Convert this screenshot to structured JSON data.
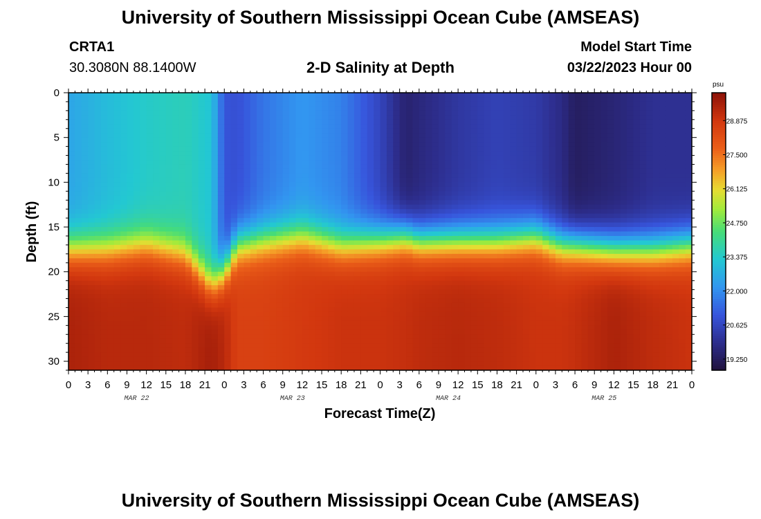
{
  "header": {
    "title": "University of Southern Mississippi Ocean Cube (AMSEAS)",
    "station": "CRTA1",
    "coordinates": "30.3080N  88.1400W",
    "subtitle": "2-D Salinity at Depth",
    "model_start_label": "Model Start Time",
    "model_start_value": "03/22/2023 Hour 00"
  },
  "footer": {
    "title": "University of Southern Mississippi Ocean Cube (AMSEAS)"
  },
  "chart_data": {
    "type": "heatmap",
    "title": "2-D Salinity at Depth",
    "xlabel": "Forecast Time(Z)",
    "ylabel": "Depth (ft)",
    "x_hours_range": [
      0,
      96
    ],
    "x_tick_step_hours": 3,
    "x_tick_labels": [
      "0",
      "3",
      "6",
      "9",
      "12",
      "15",
      "18",
      "21",
      "0",
      "3",
      "6",
      "9",
      "12",
      "15",
      "18",
      "21",
      "0",
      "3",
      "6",
      "9",
      "12",
      "15",
      "18",
      "21",
      "0",
      "3",
      "6",
      "9",
      "12",
      "15",
      "18",
      "21",
      "0"
    ],
    "date_labels": [
      {
        "label": "MAR 22",
        "hour": 10.5
      },
      {
        "label": "MAR 23",
        "hour": 34.5
      },
      {
        "label": "MAR 24",
        "hour": 58.5
      },
      {
        "label": "MAR 25",
        "hour": 82.5
      }
    ],
    "ylim": [
      0,
      31
    ],
    "y_ticks": [
      0,
      5,
      10,
      15,
      20,
      25,
      30
    ],
    "colorbar": {
      "unit": "psu",
      "range": [
        18.8,
        30.0
      ],
      "tick_values": [
        19.25,
        20.625,
        22.0,
        23.375,
        24.75,
        26.125,
        27.5,
        28.875
      ],
      "tick_labels": [
        "19.250",
        "20.625",
        "22.000",
        "23.375",
        "24.750",
        "26.125",
        "27.500",
        "28.875"
      ]
    },
    "profile_hours": [
      0,
      6,
      12,
      18,
      22,
      24,
      26,
      30,
      36,
      42,
      48,
      52,
      54,
      60,
      66,
      72,
      76,
      78,
      84,
      90,
      96
    ],
    "surface_salinity_psu": [
      22.5,
      23.0,
      23.4,
      23.6,
      23.2,
      21.0,
      20.9,
      21.6,
      22.2,
      21.8,
      20.6,
      19.5,
      19.7,
      20.2,
      20.5,
      20.3,
      19.8,
      19.3,
      19.6,
      20.0,
      20.0
    ],
    "halocline_depth_ft": [
      17.5,
      17.5,
      17.0,
      18.0,
      21.5,
      20.0,
      17.0,
      16.5,
      16.0,
      17.0,
      16.5,
      16.0,
      16.5,
      16.5,
      16.5,
      16.0,
      17.0,
      17.0,
      17.5,
      17.5,
      17.0
    ],
    "bottom_salinity_psu": [
      29.5,
      29.3,
      29.3,
      29.2,
      29.6,
      29.3,
      28.6,
      28.6,
      28.8,
      29.0,
      29.0,
      29.1,
      29.2,
      29.3,
      29.2,
      29.0,
      29.0,
      29.1,
      29.5,
      29.2,
      29.0
    ]
  }
}
